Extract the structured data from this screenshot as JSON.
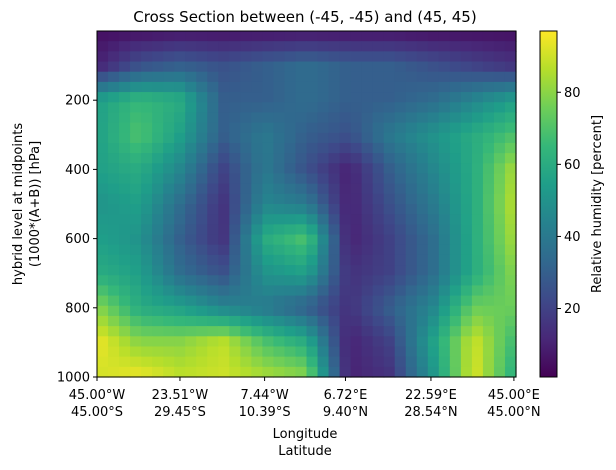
{
  "chart_data": {
    "type": "heatmap",
    "title": "Cross Section between (-45, -45) and (45, 45)",
    "xlabel_line1": "Longitude",
    "xlabel_line2": "Latitude",
    "ylabel_line1": "hybrid level at midpoints",
    "ylabel_line2": "(1000*(A+B)) [hPa]",
    "colorbar_label": "Relative humidity [percent]",
    "colormap": "viridis",
    "clim": [
      1,
      97
    ],
    "y_inverted": true,
    "ylim": [
      1000,
      0
    ],
    "xlim": [
      0,
      1
    ],
    "x_ticks": [
      {
        "pos": 0.0,
        "lon": "45.00°W",
        "lat": "45.00°S"
      },
      {
        "pos": 0.198,
        "lon": "23.51°W",
        "lat": "29.45°S"
      },
      {
        "pos": 0.4,
        "lon": "7.44°W",
        "lat": "10.39°S"
      },
      {
        "pos": 0.593,
        "lon": "6.72°E",
        "lat": "9.40°N"
      },
      {
        "pos": 0.797,
        "lon": "22.59°E",
        "lat": "28.54°N"
      },
      {
        "pos": 0.995,
        "lon": "45.00°E",
        "lat": "45.00°N"
      }
    ],
    "y_ticks": [
      200,
      400,
      600,
      800,
      1000
    ],
    "colorbar_ticks": [
      20,
      40,
      60,
      80
    ],
    "grid": false,
    "field_x": [
      0,
      0.1,
      0.2,
      0.3,
      0.4,
      0.5,
      0.6,
      0.7,
      0.8,
      0.9,
      1.0
    ],
    "field_p": [
      0,
      100,
      200,
      300,
      400,
      500,
      600,
      700,
      800,
      900,
      1000
    ],
    "field_values": [
      [
        5,
        5,
        6,
        6,
        6,
        6,
        6,
        6,
        5,
        5,
        5
      ],
      [
        10,
        25,
        30,
        25,
        30,
        35,
        30,
        30,
        25,
        20,
        15
      ],
      [
        55,
        65,
        60,
        30,
        30,
        35,
        30,
        30,
        35,
        45,
        55
      ],
      [
        55,
        70,
        55,
        30,
        40,
        30,
        25,
        40,
        50,
        60,
        70
      ],
      [
        55,
        60,
        45,
        20,
        40,
        25,
        10,
        30,
        45,
        60,
        85
      ],
      [
        50,
        55,
        35,
        15,
        45,
        40,
        10,
        25,
        40,
        60,
        88
      ],
      [
        55,
        50,
        30,
        15,
        60,
        70,
        10,
        20,
        35,
        60,
        85
      ],
      [
        60,
        55,
        35,
        25,
        50,
        55,
        15,
        20,
        35,
        60,
        80
      ],
      [
        80,
        60,
        55,
        45,
        40,
        30,
        15,
        30,
        45,
        75,
        75
      ],
      [
        95,
        80,
        80,
        88,
        70,
        60,
        10,
        20,
        55,
        90,
        65
      ],
      [
        90,
        95,
        88,
        90,
        85,
        80,
        10,
        15,
        50,
        92,
        60
      ]
    ]
  }
}
